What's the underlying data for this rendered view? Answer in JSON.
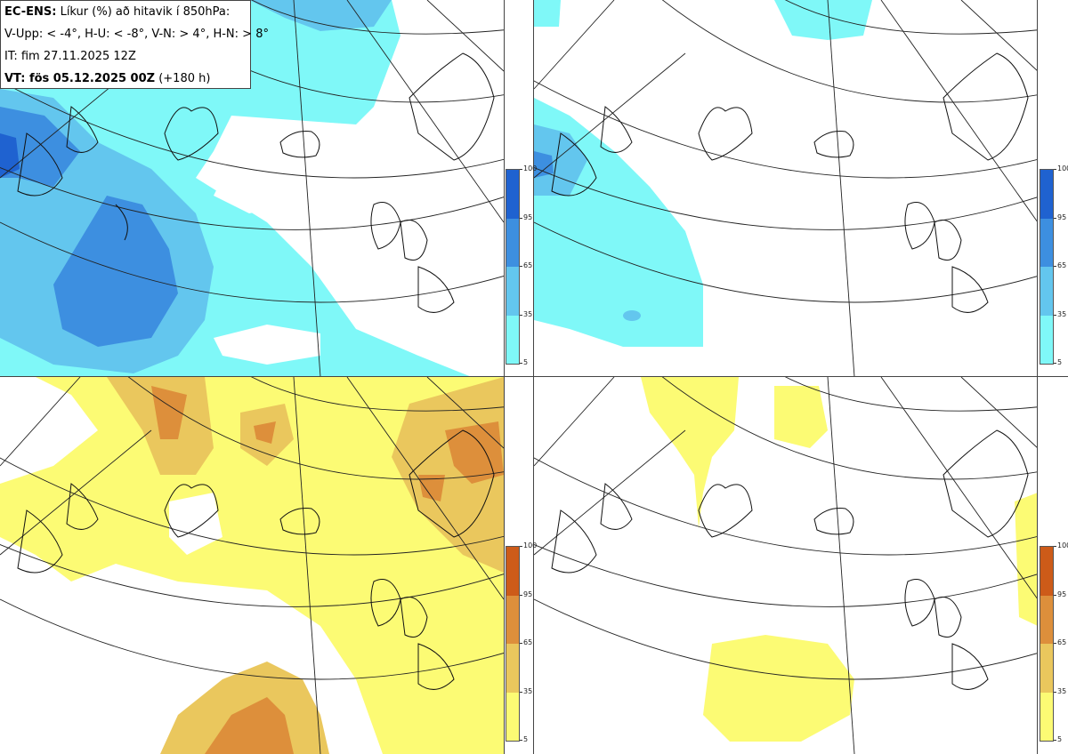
{
  "info": {
    "title_bold": "EC-ENS:",
    "title_rest": "Líkur (%) að hitavik í 850hPa:",
    "thresholds": "V-Upp: < -4°, H-U: < -8°, V-N: > 4°, H-N: > 8°",
    "it": "IT: fim 27.11.2025 12Z",
    "vt_bold": "VT: fös 05.12.2025 00Z",
    "vt_rest": "(+180 h)"
  },
  "colorbars": {
    "cold": {
      "ticks": [
        "100",
        "95",
        "65",
        "35",
        "5"
      ],
      "colors": [
        "#1f62d0",
        "#3d8fe0",
        "#63c6ee",
        "#7ff8f8"
      ]
    },
    "warm": {
      "ticks": [
        "100",
        "95",
        "65",
        "35",
        "5"
      ],
      "colors": [
        "#cd5b19",
        "#dd8f3b",
        "#eac75d",
        "#fcfb74"
      ]
    }
  },
  "panels": [
    {
      "name": "V-Upp",
      "label": ""
    },
    {
      "name": "H-U",
      "label": ""
    },
    {
      "name": "V-N",
      "label": ""
    },
    {
      "name": "H-N",
      "label": ""
    }
  ]
}
